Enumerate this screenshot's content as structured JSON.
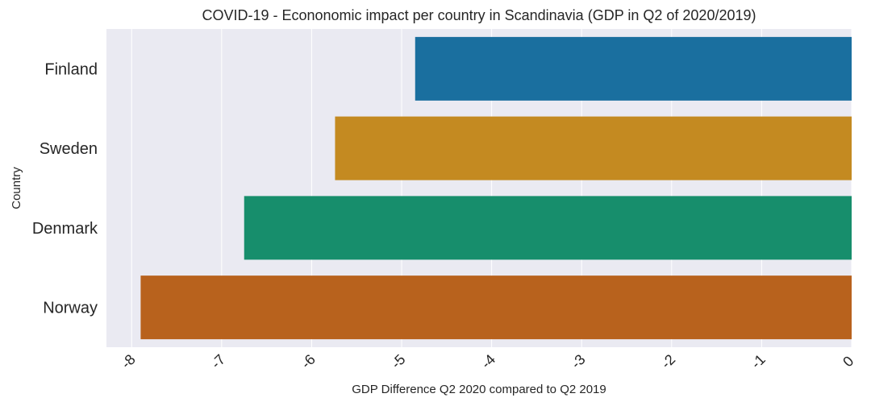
{
  "chart_data": {
    "type": "bar",
    "orientation": "horizontal",
    "title": "COVID-19 - Econonomic impact per country in Scandinavia (GDP in Q2 of 2020/2019)",
    "xlabel": "GDP Difference Q2 2020 compared to Q2 2019",
    "ylabel": "Country",
    "categories": [
      "Finland",
      "Sweden",
      "Denmark",
      "Norway"
    ],
    "values": [
      -4.85,
      -5.74,
      -6.75,
      -7.9
    ],
    "colors": [
      "#1a6f9f",
      "#c48a21",
      "#178e6c",
      "#b8621d"
    ],
    "xlim": [
      -8.28,
      0
    ],
    "xticks": [
      -8,
      -7,
      -6,
      -5,
      -4,
      -3,
      -2,
      -1,
      0
    ],
    "xtick_labels": [
      "-8",
      "-7",
      "-6",
      "-5",
      "-4",
      "-3",
      "-2",
      "-1",
      "0"
    ],
    "background": "#eaeaf2",
    "grid": true,
    "legend": "none"
  }
}
